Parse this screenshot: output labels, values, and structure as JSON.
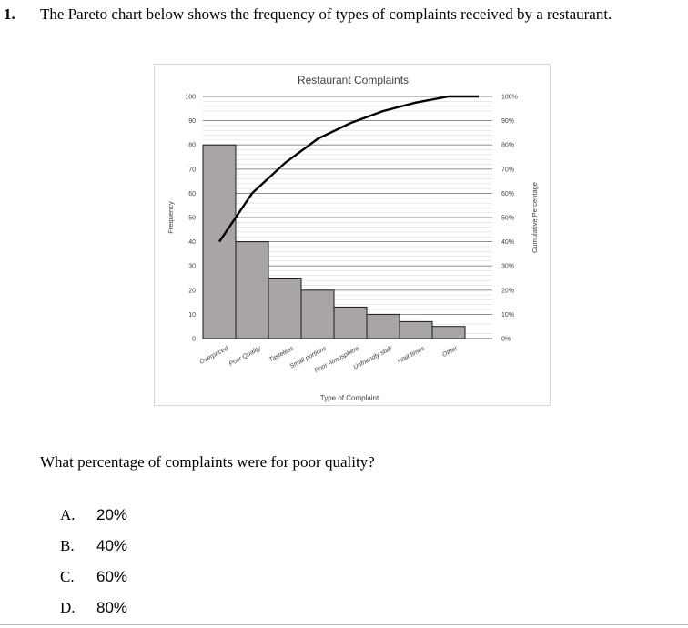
{
  "question": {
    "number": "1.",
    "text": "The Pareto chart below shows the frequency of types of complaints received by a restaurant.",
    "prompt": "What percentage of complaints were for poor quality?"
  },
  "choices": [
    {
      "letter": "A.",
      "value": "20%"
    },
    {
      "letter": "B.",
      "value": "40%"
    },
    {
      "letter": "C.",
      "value": "60%"
    },
    {
      "letter": "D.",
      "value": "80%"
    }
  ],
  "chart_data": {
    "type": "bar",
    "title": "Restaurant Complaints",
    "xlabel": "Type of Complaint",
    "ylabel": "Frequency",
    "y2label": "Cumulative Percentage",
    "categories": [
      "Overpriced",
      "Poor Quality",
      "Tasteless",
      "Small portions",
      "Poor Atmosphere",
      "Unfriendly staff",
      "Wait times",
      "Other"
    ],
    "values": [
      80,
      40,
      25,
      20,
      13,
      10,
      7,
      5
    ],
    "cumulative_percentage": [
      40,
      60,
      72.5,
      82.5,
      89,
      94,
      97.5,
      100
    ],
    "ylim": [
      0,
      100
    ],
    "y2lim": [
      0,
      100
    ],
    "yticks": [
      "0",
      "10",
      "20",
      "30",
      "40",
      "50",
      "60",
      "70",
      "80",
      "90",
      "100"
    ],
    "y2ticks": [
      "0%",
      "10%",
      "20%",
      "30%",
      "40%",
      "50%",
      "60%",
      "70%",
      "80%",
      "90%",
      "100%"
    ],
    "grid": true,
    "colors": {
      "bar_fill": "#a9a5a5",
      "bar_stroke": "#1a1a1a",
      "line": "#000000",
      "grid": "#7f7f7f",
      "minor_grid": "#d9d9d9"
    }
  }
}
